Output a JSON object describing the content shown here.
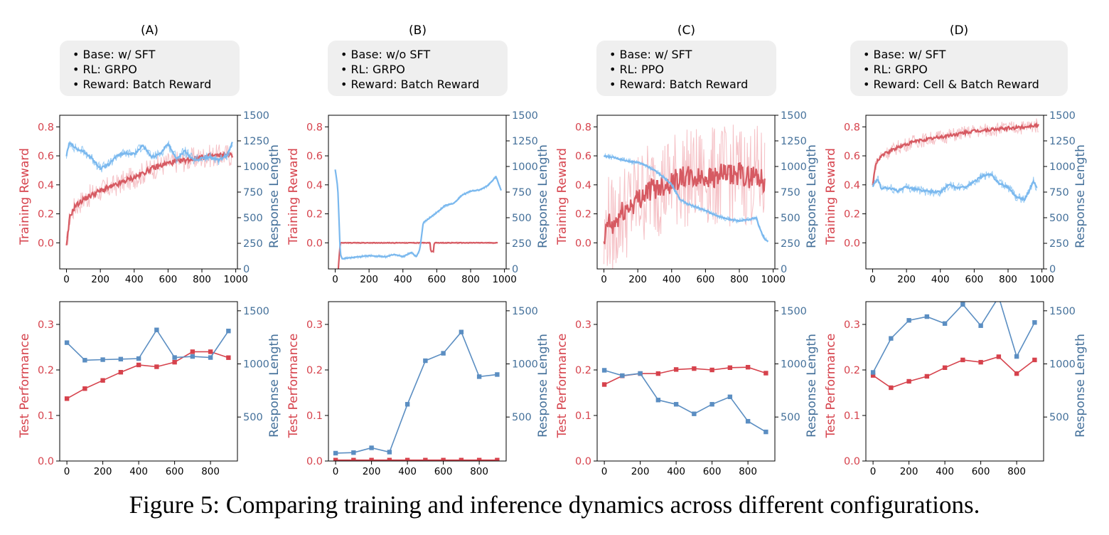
{
  "colors": {
    "red": "#d6424c",
    "red_light": "#f3b5bb",
    "blue": "#5b8ec2",
    "blue_light": "#86c2f2",
    "blue_axis": "#44709a",
    "box_bg": "#efefef"
  },
  "caption": "Figure 5: Comparing training and inference dynamics across different configurations.",
  "panels": [
    {
      "id": "A",
      "letter": "(A)",
      "info": [
        "Base: w/ SFT",
        "RL: GRPO",
        "Reward: Batch Reward"
      ]
    },
    {
      "id": "B",
      "letter": "(B)",
      "info": [
        "Base: w/o SFT",
        "RL: GRPO",
        "Reward: Batch Reward"
      ]
    },
    {
      "id": "C",
      "letter": "(C)",
      "info": [
        "Base: w/ SFT",
        "RL: PPO",
        "Reward: Batch Reward"
      ]
    },
    {
      "id": "D",
      "letter": "(D)",
      "info": [
        "Base: w/ SFT",
        "RL: GRPO",
        "Reward: Cell & Batch Reward"
      ]
    }
  ],
  "chart_data": [
    {
      "panel": "A",
      "type": "line",
      "xlabel": "",
      "ylabel_left": "Training Reward",
      "ylabel_right": "Response Length",
      "x_ticks": [
        0,
        200,
        400,
        600,
        800,
        1000
      ],
      "xlim": [
        -40,
        1010
      ],
      "yleft_ticks": [
        0.0,
        0.2,
        0.4,
        0.6,
        0.8
      ],
      "yleft_lim": [
        -0.18,
        0.88
      ],
      "yright_ticks": [
        0,
        250,
        500,
        750,
        1000,
        1250,
        1500
      ],
      "yright_lim": [
        0,
        1500
      ],
      "series": [
        {
          "name": "Training Reward",
          "axis": "left",
          "color": "red",
          "noise": 0.08,
          "x": [
            0,
            20,
            50,
            100,
            150,
            200,
            250,
            300,
            350,
            400,
            450,
            500,
            550,
            600,
            650,
            700,
            750,
            800,
            850,
            900,
            950,
            980
          ],
          "y": [
            -0.03,
            0.18,
            0.25,
            0.3,
            0.33,
            0.36,
            0.38,
            0.4,
            0.43,
            0.45,
            0.48,
            0.51,
            0.53,
            0.55,
            0.56,
            0.57,
            0.58,
            0.59,
            0.6,
            0.6,
            0.61,
            0.6
          ]
        },
        {
          "name": "Response Length",
          "axis": "right",
          "color": "blue",
          "noise": 50,
          "x": [
            0,
            20,
            50,
            100,
            150,
            200,
            250,
            300,
            350,
            400,
            450,
            500,
            550,
            600,
            650,
            700,
            750,
            800,
            850,
            900,
            950,
            980
          ],
          "y": [
            1110,
            1240,
            1180,
            1150,
            1080,
            980,
            1020,
            1110,
            1130,
            1120,
            1210,
            1090,
            1120,
            1220,
            1080,
            1150,
            1060,
            1080,
            1090,
            1060,
            1110,
            1230
          ]
        }
      ]
    },
    {
      "panel": "B",
      "type": "line",
      "xlabel": "",
      "ylabel_left": "Training Reward",
      "ylabel_right": "Response Length",
      "x_ticks": [
        0,
        200,
        400,
        600,
        800,
        1000
      ],
      "xlim": [
        -40,
        1010
      ],
      "yleft_ticks": [
        0.0,
        0.2,
        0.4,
        0.6,
        0.8
      ],
      "yleft_lim": [
        -0.18,
        0.88
      ],
      "yright_ticks": [
        0,
        250,
        500,
        750,
        1000,
        1250,
        1500
      ],
      "yright_lim": [
        0,
        1500
      ],
      "series": [
        {
          "name": "Training Reward",
          "axis": "left",
          "color": "red",
          "noise": 0.008,
          "x": [
            0,
            20,
            30,
            40,
            100,
            200,
            300,
            400,
            500,
            560,
            565,
            580,
            585,
            600,
            700,
            800,
            900,
            960
          ],
          "y": [
            -0.55,
            -0.15,
            0.0,
            0.0,
            0.0,
            0.0,
            0.0,
            0.0,
            0.0,
            0.0,
            -0.06,
            -0.06,
            0.0,
            0.0,
            0.0,
            0.0,
            0.0,
            0.0
          ]
        },
        {
          "name": "Response Length",
          "axis": "right",
          "color": "blue",
          "noise": 15,
          "x": [
            0,
            15,
            30,
            40,
            100,
            200,
            300,
            350,
            400,
            450,
            480,
            500,
            520,
            560,
            600,
            650,
            700,
            750,
            800,
            850,
            900,
            950,
            980
          ],
          "y": [
            970,
            800,
            150,
            100,
            110,
            130,
            120,
            140,
            120,
            160,
            120,
            190,
            450,
            500,
            550,
            620,
            640,
            720,
            760,
            770,
            810,
            900,
            770
          ]
        }
      ]
    },
    {
      "panel": "C",
      "type": "line",
      "xlabel": "",
      "ylabel_left": "Training Reward",
      "ylabel_right": "Response Length",
      "x_ticks": [
        0,
        200,
        400,
        600,
        800,
        1000
      ],
      "xlim": [
        -40,
        1010
      ],
      "yleft_ticks": [
        0.0,
        0.2,
        0.4,
        0.6,
        0.8
      ],
      "yleft_lim": [
        -0.18,
        0.88
      ],
      "yright_ticks": [
        0,
        250,
        500,
        750,
        1000,
        1250,
        1500
      ],
      "yright_lim": [
        0,
        1500
      ],
      "series": [
        {
          "name": "Training Reward",
          "axis": "left",
          "color": "red",
          "noise": 0.35,
          "x": [
            0,
            20,
            50,
            100,
            150,
            200,
            250,
            300,
            350,
            400,
            450,
            500,
            550,
            600,
            650,
            700,
            750,
            800,
            850,
            900,
            950
          ],
          "y": [
            -0.05,
            0.15,
            0.1,
            0.2,
            0.25,
            0.3,
            0.35,
            0.38,
            0.4,
            0.42,
            0.45,
            0.45,
            0.44,
            0.46,
            0.45,
            0.47,
            0.46,
            0.48,
            0.45,
            0.47,
            0.42
          ]
        },
        {
          "name": "Response Length",
          "axis": "right",
          "color": "blue",
          "noise": 25,
          "x": [
            0,
            50,
            100,
            150,
            200,
            250,
            300,
            350,
            400,
            450,
            500,
            550,
            600,
            650,
            700,
            750,
            800,
            850,
            900,
            920,
            950,
            970
          ],
          "y": [
            1100,
            1090,
            1070,
            1050,
            1040,
            1010,
            960,
            900,
            820,
            680,
            630,
            600,
            570,
            530,
            500,
            480,
            470,
            480,
            500,
            400,
            290,
            270
          ]
        }
      ]
    },
    {
      "panel": "D",
      "type": "line",
      "xlabel": "",
      "ylabel_left": "Training Reward",
      "ylabel_right": "Response Length",
      "x_ticks": [
        0,
        200,
        400,
        600,
        800,
        1000
      ],
      "xlim": [
        -40,
        1010
      ],
      "yleft_ticks": [
        0.0,
        0.2,
        0.4,
        0.6,
        0.8
      ],
      "yleft_lim": [
        -0.18,
        0.88
      ],
      "yright_ticks": [
        0,
        250,
        500,
        750,
        1000,
        1250,
        1500
      ],
      "yright_lim": [
        0,
        1500
      ],
      "series": [
        {
          "name": "Training Reward",
          "axis": "left",
          "color": "red",
          "noise": 0.05,
          "x": [
            0,
            20,
            50,
            100,
            150,
            200,
            250,
            300,
            400,
            500,
            600,
            700,
            800,
            900,
            950,
            980
          ],
          "y": [
            0.4,
            0.55,
            0.6,
            0.63,
            0.66,
            0.68,
            0.7,
            0.71,
            0.73,
            0.75,
            0.77,
            0.78,
            0.79,
            0.8,
            0.81,
            0.81
          ]
        },
        {
          "name": "Response Length",
          "axis": "right",
          "color": "blue",
          "noise": 45,
          "x": [
            0,
            30,
            50,
            100,
            150,
            200,
            300,
            400,
            450,
            500,
            550,
            600,
            650,
            700,
            750,
            800,
            850,
            900,
            950,
            970
          ],
          "y": [
            800,
            880,
            790,
            790,
            760,
            800,
            760,
            750,
            820,
            790,
            800,
            850,
            910,
            920,
            830,
            800,
            700,
            680,
            860,
            790
          ]
        }
      ]
    },
    {
      "panel": "A",
      "type": "line",
      "xlabel": "",
      "ylabel_left": "Test Performance",
      "ylabel_right": "Response Length",
      "x_ticks": [
        0,
        200,
        400,
        600,
        800
      ],
      "xlim": [
        -40,
        950
      ],
      "yleft_ticks": [
        0.0,
        0.1,
        0.2,
        0.3
      ],
      "yleft_lim": [
        0,
        0.35
      ],
      "yright_ticks": [
        500,
        1000,
        1500
      ],
      "yright_lim": [
        86,
        1586
      ],
      "series": [
        {
          "name": "Test Performance",
          "axis": "left",
          "color": "red",
          "markers": true,
          "x": [
            0,
            100,
            200,
            300,
            400,
            500,
            600,
            700,
            800,
            900
          ],
          "y": [
            0.137,
            0.159,
            0.177,
            0.195,
            0.211,
            0.207,
            0.217,
            0.24,
            0.24,
            0.227
          ]
        },
        {
          "name": "Response Length",
          "axis": "right",
          "color": "blue",
          "markers": true,
          "x": [
            0,
            100,
            200,
            300,
            400,
            500,
            600,
            700,
            800,
            900
          ],
          "y": [
            1200,
            1035,
            1040,
            1045,
            1050,
            1320,
            1060,
            1070,
            1060,
            1310
          ]
        }
      ]
    },
    {
      "panel": "B",
      "type": "line",
      "xlabel": "",
      "ylabel_left": "Test Performance",
      "ylabel_right": "Response Length",
      "x_ticks": [
        0,
        200,
        400,
        600,
        800
      ],
      "xlim": [
        -40,
        950
      ],
      "yleft_ticks": [
        0.0,
        0.1,
        0.2,
        0.3
      ],
      "yleft_lim": [
        0,
        0.35
      ],
      "yright_ticks": [
        500,
        1000,
        1500
      ],
      "yright_lim": [
        86,
        1586
      ],
      "series": [
        {
          "name": "Test Performance",
          "axis": "left",
          "color": "red",
          "markers": true,
          "x": [
            0,
            100,
            200,
            300,
            400,
            500,
            600,
            700,
            800,
            900
          ],
          "y": [
            0.002,
            0.002,
            0.002,
            0.002,
            0.002,
            0.002,
            0.002,
            0.002,
            0.002,
            0.002
          ]
        },
        {
          "name": "Response Length",
          "axis": "right",
          "color": "blue",
          "markers": true,
          "x": [
            0,
            100,
            200,
            300,
            400,
            500,
            600,
            700,
            800,
            900
          ],
          "y": [
            160,
            165,
            210,
            170,
            620,
            1030,
            1100,
            1300,
            880,
            900
          ]
        }
      ]
    },
    {
      "panel": "C",
      "type": "line",
      "xlabel": "",
      "ylabel_left": "Test Performance",
      "ylabel_right": "Response Length",
      "x_ticks": [
        0,
        200,
        400,
        600,
        800
      ],
      "xlim": [
        -40,
        950
      ],
      "yleft_ticks": [
        0.0,
        0.1,
        0.2,
        0.3
      ],
      "yleft_lim": [
        0,
        0.35
      ],
      "yright_ticks": [
        500,
        1000,
        1500
      ],
      "yright_lim": [
        86,
        1586
      ],
      "series": [
        {
          "name": "Test Performance",
          "axis": "left",
          "color": "red",
          "markers": true,
          "x": [
            0,
            100,
            200,
            300,
            400,
            500,
            600,
            700,
            800,
            900
          ],
          "y": [
            0.168,
            0.187,
            0.192,
            0.192,
            0.201,
            0.203,
            0.2,
            0.205,
            0.206,
            0.193
          ]
        },
        {
          "name": "Response Length",
          "axis": "right",
          "color": "blue",
          "markers": true,
          "x": [
            0,
            100,
            200,
            300,
            400,
            500,
            600,
            700,
            800,
            900
          ],
          "y": [
            940,
            890,
            910,
            660,
            620,
            530,
            620,
            690,
            460,
            360
          ]
        }
      ]
    },
    {
      "panel": "D",
      "type": "line",
      "xlabel": "",
      "ylabel_left": "Test Performance",
      "ylabel_right": "Response Length",
      "x_ticks": [
        0,
        200,
        400,
        600,
        800
      ],
      "xlim": [
        -40,
        950
      ],
      "yleft_ticks": [
        0.0,
        0.1,
        0.2,
        0.3
      ],
      "yleft_lim": [
        0,
        0.35
      ],
      "yright_ticks": [
        500,
        1000,
        1500
      ],
      "yright_lim": [
        86,
        1586
      ],
      "series": [
        {
          "name": "Test Performance",
          "axis": "left",
          "color": "red",
          "markers": true,
          "x": [
            0,
            100,
            200,
            300,
            400,
            500,
            600,
            700,
            800,
            900
          ],
          "y": [
            0.188,
            0.161,
            0.175,
            0.186,
            0.205,
            0.222,
            0.217,
            0.229,
            0.192,
            0.222
          ]
        },
        {
          "name": "Response Length",
          "axis": "right",
          "color": "blue",
          "markers": true,
          "x": [
            0,
            100,
            200,
            300,
            400,
            500,
            600,
            700,
            800,
            900
          ],
          "y": [
            920,
            1240,
            1410,
            1445,
            1380,
            1560,
            1360,
            1630,
            1070,
            1390
          ]
        }
      ]
    }
  ]
}
